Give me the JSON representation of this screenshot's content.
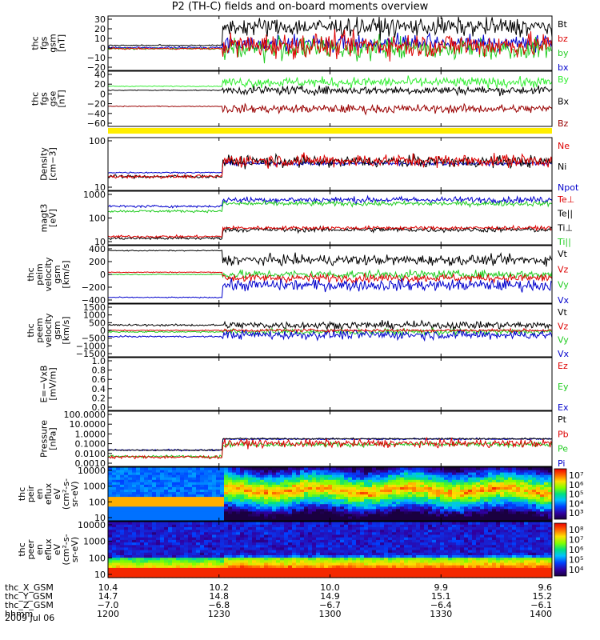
{
  "title": "P2 (TH-C) fields and on-board moments overview",
  "date_label": "2009 Jul 06",
  "chart_data": {
    "type": "line",
    "x_time_ticks": [
      "1200",
      "1230",
      "1300",
      "1330",
      "1400"
    ],
    "panels": [
      {
        "id": "fgs_gsm",
        "ylabel": [
          "thc",
          "fgs",
          "gsm",
          "[nT]"
        ],
        "ylim": [
          -20,
          30
        ],
        "ticks": [
          "30",
          "20",
          "10",
          "0",
          "−10",
          "−20"
        ],
        "legend": [
          {
            "name": "Bt",
            "color": "#000000"
          },
          {
            "name": "bz",
            "color": "#dd0000"
          },
          {
            "name": "by",
            "color": "#22cc22"
          },
          {
            "name": "bx",
            "color": "#0000cc"
          }
        ],
        "series_levels": {
          "Bt_quiet": 3,
          "Bt_active": 20,
          "bx_active": 5,
          "by_active": 0,
          "bz_active": 3
        }
      },
      {
        "id": "fgs_gse",
        "ylabel": [
          "thc",
          "fgs",
          "gse",
          "[nT]"
        ],
        "ylim": [
          -70,
          40
        ],
        "ticks": [
          "40",
          "20",
          "0",
          "−20",
          "−40",
          "−60"
        ],
        "legend": [
          {
            "name": "By",
            "color": "#33ee33"
          },
          {
            "name": "Bx",
            "color": "#000000"
          },
          {
            "name": "Bz",
            "color": "#990000"
          }
        ],
        "series_levels": {
          "By_quiet": 10,
          "By_active": 20,
          "Bx": 2,
          "Bz_quiet": -30,
          "Bz_active": -35
        }
      },
      {
        "id": "density",
        "ylabel": [
          "Density",
          "[cm−3]"
        ],
        "ylim": [
          1,
          200
        ],
        "log": true,
        "ticks": [
          "100",
          "10"
        ],
        "legend": [
          {
            "name": "Ne",
            "color": "#dd0000"
          },
          {
            "name": "Ni",
            "color": "#000000"
          },
          {
            "name": "Npot",
            "color": "#0000cc"
          }
        ],
        "series_levels": {
          "Npot_quiet": 6,
          "N_quiet": 4,
          "N_active": 20
        }
      },
      {
        "id": "temp",
        "ylabel": [
          "magt3",
          "[eV]"
        ],
        "ylim": [
          5,
          1500
        ],
        "log": true,
        "ticks": [
          "1000",
          "100",
          "10"
        ],
        "legend": [
          {
            "name": "Te⊥",
            "color": "#dd0000"
          },
          {
            "name": "Te||",
            "color": "#000000"
          },
          {
            "name": "Ti⊥",
            "color": "#000000"
          },
          {
            "name": "Ti||",
            "color": "#22cc22"
          }
        ],
        "series_levels": {
          "Ti_quiet": 180,
          "Ti_active": 500,
          "Te_quiet": 12,
          "Te_active": 30
        }
      },
      {
        "id": "peim_vel",
        "ylabel": [
          "thc",
          "peim",
          "velocity",
          "gsm",
          "[km/s]"
        ],
        "ylim": [
          -400,
          400
        ],
        "ticks": [
          "400",
          "200",
          "0",
          "−200",
          "−400"
        ],
        "legend": [
          {
            "name": "Vt",
            "color": "#000000"
          },
          {
            "name": "Vz",
            "color": "#dd0000"
          },
          {
            "name": "Vy",
            "color": "#22cc22"
          },
          {
            "name": "Vx",
            "color": "#0000cc"
          }
        ],
        "series_levels": {
          "Vt_quiet": 330,
          "Vt_active": 200,
          "Vx_quiet": -320,
          "Vx_active": -150,
          "Vy": 0,
          "Vz_quiet": 30,
          "Vz_active": -50
        }
      },
      {
        "id": "peem_vel",
        "ylabel": [
          "thc",
          "peem",
          "velocity",
          "gsm",
          "[km/s]"
        ],
        "ylim": [
          -1500,
          1500
        ],
        "ticks": [
          "1500",
          "1000",
          "500",
          "0",
          "−500",
          "−1000",
          "−1500"
        ],
        "legend": [
          {
            "name": "Vt",
            "color": "#000000"
          },
          {
            "name": "Vz",
            "color": "#dd0000"
          },
          {
            "name": "Vy",
            "color": "#22cc22"
          },
          {
            "name": "Vx",
            "color": "#0000cc"
          }
        ],
        "series_levels": {
          "Vt": 300,
          "Vz": 0,
          "Vy": -100,
          "Vx": -350
        }
      },
      {
        "id": "efield",
        "ylabel": [
          "E=−VxB",
          "[mV/m]"
        ],
        "ylim": [
          -1,
          1
        ],
        "ticks": [
          "1.0",
          "0.8",
          "0.6",
          "0.4",
          "0.2",
          "0.0"
        ],
        "legend": [
          {
            "name": "Ez",
            "color": "#dd0000"
          },
          {
            "name": "Ey",
            "color": "#22cc22"
          },
          {
            "name": "Ex",
            "color": "#0000cc"
          }
        ]
      },
      {
        "id": "pressure",
        "ylabel": [
          "Pressure",
          "[nPa]"
        ],
        "ylim": [
          0.001,
          100
        ],
        "log": true,
        "ticks": [
          "100.0000",
          "10.0000",
          "1.0000",
          "0.1000",
          "0.0100",
          "0.0010"
        ],
        "legend": [
          {
            "name": "Pt",
            "color": "#000000"
          },
          {
            "name": "Pb",
            "color": "#dd0000"
          },
          {
            "name": "Pe",
            "color": "#22cc22"
          },
          {
            "name": "Pi",
            "color": "#0000cc"
          }
        ],
        "series_levels": {
          "Pt_quiet": 0.03,
          "Pt_active": 0.3,
          "Pb_quiet": 0.007,
          "Pb_active": 0.15
        }
      },
      {
        "id": "peir_spec",
        "ylabel": [
          "thc",
          "peir",
          "en",
          "eflux",
          "eV",
          "(cm²-s-",
          "sr-eV)"
        ],
        "ticks": [
          "10000",
          "1000",
          "100",
          "10"
        ],
        "colorbar_ticks": [
          "10⁷",
          "10⁶",
          "10⁵",
          "10⁴",
          "10³"
        ]
      },
      {
        "id": "peer_spec",
        "ylabel": [
          "thc",
          "peer",
          "en",
          "eflux",
          "eV",
          "(cm²-s-",
          "sr-eV)"
        ],
        "ticks": [
          "10000",
          "1000",
          "100",
          "10"
        ],
        "colorbar_ticks": [
          "10⁸",
          "10⁷",
          "10⁶",
          "10⁵",
          "10⁴"
        ]
      }
    ],
    "orbit_rows": [
      {
        "label": "thc_X_GSM",
        "values": [
          "10.4",
          "10.2",
          "10.0",
          "9.9",
          "9.6"
        ]
      },
      {
        "label": "thc_Y_GSM",
        "values": [
          "14.7",
          "14.8",
          "14.9",
          "15.1",
          "15.2"
        ]
      },
      {
        "label": "thc_Z_GSM",
        "values": [
          "−7.0",
          "−6.8",
          "−6.7",
          "−6.4",
          "−6.1"
        ]
      },
      {
        "label": "hhmm",
        "values": [
          "1200",
          "1230",
          "1300",
          "1330",
          "1400"
        ]
      }
    ]
  }
}
